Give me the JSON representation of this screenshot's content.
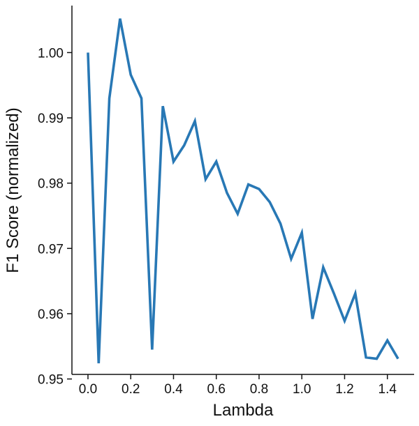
{
  "chart_data": {
    "type": "line",
    "title": "",
    "xlabel": "Lambda",
    "ylabel": "F1 Score (normalized)",
    "xlim": [
      -0.075,
      1.525
    ],
    "ylim": [
      0.9507,
      1.0072
    ],
    "xticks": [
      0.0,
      0.2,
      0.4,
      0.6,
      0.8,
      1.0,
      1.2,
      1.4
    ],
    "xtick_labels": [
      "0.0",
      "0.2",
      "0.4",
      "0.6",
      "0.8",
      "1.0",
      "1.2",
      "1.4"
    ],
    "yticks": [
      0.95,
      0.96,
      0.97,
      0.98,
      0.99,
      1.0
    ],
    "ytick_labels": [
      "0.95",
      "0.96",
      "0.97",
      "0.98",
      "0.99",
      "1.00"
    ],
    "grid": false,
    "series": [
      {
        "color": "#2878b5",
        "x": [
          0.0,
          0.05,
          0.1,
          0.15,
          0.2,
          0.25,
          0.3,
          0.35,
          0.4,
          0.45,
          0.5,
          0.55,
          0.6,
          0.65,
          0.7,
          0.75,
          0.8,
          0.85,
          0.9,
          0.95,
          1.0,
          1.05,
          1.1,
          1.15,
          1.2,
          1.25,
          1.3,
          1.35,
          1.4,
          1.45
        ],
        "y": [
          1.0,
          0.9524,
          0.993,
          1.0052,
          0.9966,
          0.993,
          0.9545,
          0.9918,
          0.9833,
          0.9858,
          0.9895,
          0.9806,
          0.9833,
          0.9785,
          0.9753,
          0.9798,
          0.9791,
          0.9771,
          0.9738,
          0.9684,
          0.9724,
          0.9592,
          0.9671,
          0.9631,
          0.9589,
          0.9631,
          0.9533,
          0.9531,
          0.9559,
          0.9531
        ]
      }
    ]
  }
}
